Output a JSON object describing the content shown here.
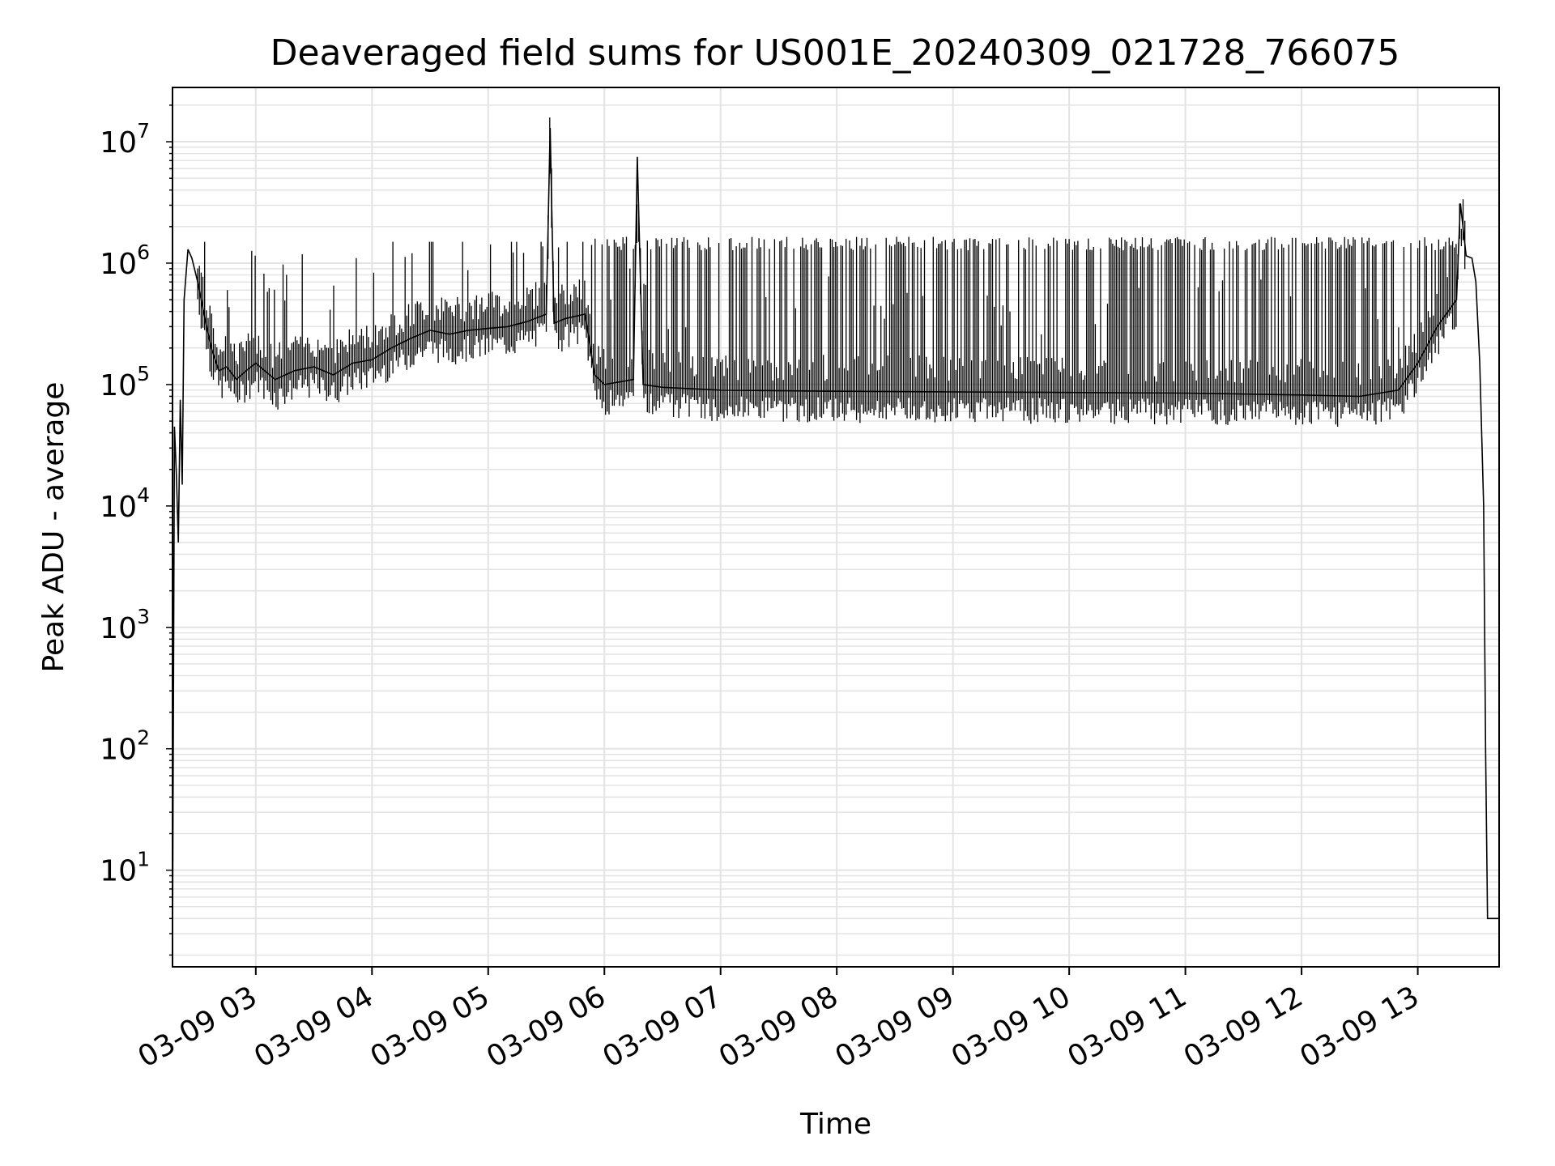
{
  "chart_data": {
    "type": "line",
    "title": "Deaveraged field sums for US001E_20240309_021728_766075",
    "xlabel": "Time",
    "ylabel": "Peak ADU - average",
    "y_scale": "log",
    "ylim": [
      1.6,
      28000000
    ],
    "xlim": [
      "2024-03-09 02:17",
      "2024-03-09 13:42"
    ],
    "grid": true,
    "line_color": "#000000",
    "grid_color": "#e3e3e3",
    "x_ticks": [
      {
        "value": "2024-03-09 03:00",
        "label": "03-09 03"
      },
      {
        "value": "2024-03-09 04:00",
        "label": "03-09 04"
      },
      {
        "value": "2024-03-09 05:00",
        "label": "03-09 05"
      },
      {
        "value": "2024-03-09 06:00",
        "label": "03-09 06"
      },
      {
        "value": "2024-03-09 07:00",
        "label": "03-09 07"
      },
      {
        "value": "2024-03-09 08:00",
        "label": "03-09 08"
      },
      {
        "value": "2024-03-09 09:00",
        "label": "03-09 09"
      },
      {
        "value": "2024-03-09 10:00",
        "label": "03-09 10"
      },
      {
        "value": "2024-03-09 11:00",
        "label": "03-09 11"
      },
      {
        "value": "2024-03-09 12:00",
        "label": "03-09 12"
      },
      {
        "value": "2024-03-09 13:00",
        "label": "03-09 13"
      }
    ],
    "y_ticks": [
      {
        "value": 10,
        "base": "10",
        "exp": "1"
      },
      {
        "value": 100,
        "base": "10",
        "exp": "2"
      },
      {
        "value": 1000,
        "base": "10",
        "exp": "3"
      },
      {
        "value": 10000,
        "base": "10",
        "exp": "4"
      },
      {
        "value": 100000,
        "base": "10",
        "exp": "5"
      },
      {
        "value": 1000000,
        "base": "10",
        "exp": "6"
      },
      {
        "value": 10000000,
        "base": "10",
        "exp": "7"
      }
    ],
    "series": [
      {
        "x": [
          "2024-03-09 02:17",
          "2024-03-09 02:18",
          "2024-03-09 02:19",
          "2024-03-09 02:20",
          "2024-03-09 02:21",
          "2024-03-09 02:22",
          "2024-03-09 02:23",
          "2024-03-09 02:25",
          "2024-03-09 02:27",
          "2024-03-09 02:30",
          "2024-03-09 02:33",
          "2024-03-09 02:37",
          "2024-03-09 02:41",
          "2024-03-09 02:45",
          "2024-03-09 02:50",
          "2024-03-09 02:55",
          "2024-03-09 03:00",
          "2024-03-09 03:10",
          "2024-03-09 03:20",
          "2024-03-09 03:30",
          "2024-03-09 03:40",
          "2024-03-09 03:50",
          "2024-03-09 04:00",
          "2024-03-09 04:10",
          "2024-03-09 04:20",
          "2024-03-09 04:30",
          "2024-03-09 04:40",
          "2024-03-09 04:50",
          "2024-03-09 05:00",
          "2024-03-09 05:10",
          "2024-03-09 05:20",
          "2024-03-09 05:30",
          "2024-03-09 05:32",
          "2024-03-09 05:34",
          "2024-03-09 05:40",
          "2024-03-09 05:50",
          "2024-03-09 05:55",
          "2024-03-09 06:00",
          "2024-03-09 06:15",
          "2024-03-09 06:17",
          "2024-03-09 06:20",
          "2024-03-09 06:30",
          "2024-03-09 07:00",
          "2024-03-09 08:00",
          "2024-03-09 09:00",
          "2024-03-09 10:00",
          "2024-03-09 11:00",
          "2024-03-09 12:00",
          "2024-03-09 12:30",
          "2024-03-09 12:50",
          "2024-03-09 13:00",
          "2024-03-09 13:10",
          "2024-03-09 13:20",
          "2024-03-09 13:22",
          "2024-03-09 13:25",
          "2024-03-09 13:28",
          "2024-03-09 13:30",
          "2024-03-09 13:32",
          "2024-03-09 13:34",
          "2024-03-09 13:35",
          "2024-03-09 13:36",
          "2024-03-09 13:42"
        ],
        "y": [
          2,
          45000,
          18000,
          5000,
          75000,
          15000,
          500000,
          1300000,
          1100000,
          700000,
          400000,
          200000,
          130000,
          140000,
          110000,
          130000,
          150000,
          110000,
          130000,
          140000,
          120000,
          150000,
          160000,
          200000,
          240000,
          280000,
          260000,
          280000,
          290000,
          300000,
          330000,
          380000,
          13000000,
          320000,
          350000,
          380000,
          120000,
          100000,
          110000,
          7500000,
          100000,
          95000,
          90000,
          88000,
          87000,
          86000,
          85000,
          82000,
          80000,
          90000,
          150000,
          300000,
          500000,
          3100000,
          1150000,
          1100000,
          700000,
          150000,
          10000,
          100,
          4,
          4
        ]
      }
    ],
    "spikes": {
      "description": "dense intermittent excursions up to ~1.5e6 from the ~1e5 baseline",
      "top": 1500000
    }
  }
}
